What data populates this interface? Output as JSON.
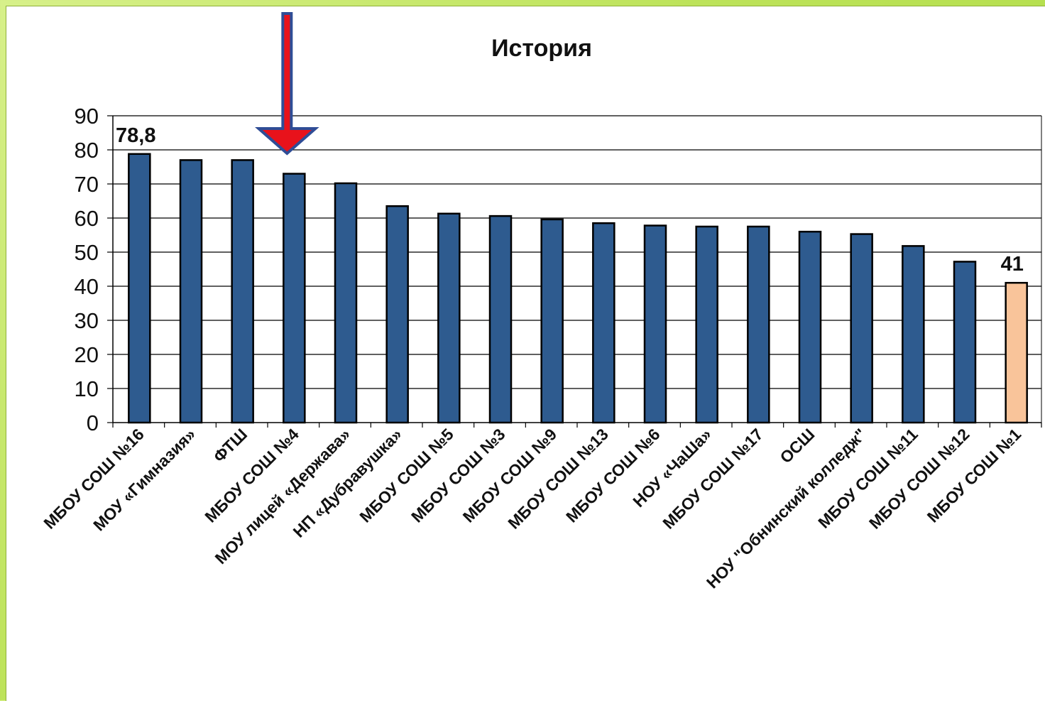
{
  "chart_data": {
    "type": "bar",
    "title": "История",
    "xlabel": "",
    "ylabel": "",
    "ylim": [
      0,
      90
    ],
    "yticks": [
      0,
      10,
      20,
      30,
      40,
      50,
      60,
      70,
      80,
      90
    ],
    "grid": true,
    "categories": [
      "МБОУ СОШ №16",
      "МОУ «Гимназия»",
      "ФТШ",
      "МБОУ СОШ №4",
      "МОУ лицей «Держава»",
      "НП «Дубравушка»",
      "МБОУ СОШ №5",
      "МБОУ СОШ №3",
      "МБОУ СОШ №9",
      "МБОУ СОШ №13",
      "МБОУ СОШ №6",
      "НОУ «ЧаШа»",
      "МБОУ СОШ №17",
      "ОСШ",
      "НОУ \"Обнинский колледж\"",
      "МБОУ СОШ №11",
      "МБОУ СОШ №12",
      "МБОУ СОШ №1"
    ],
    "values": [
      78.8,
      77,
      77,
      73,
      70.2,
      63.5,
      61.3,
      60.6,
      59.6,
      58.5,
      57.8,
      57.5,
      57.5,
      56,
      55.3,
      51.8,
      47.2,
      41
    ],
    "data_labels": [
      {
        "index": 0,
        "text": "78,8"
      },
      {
        "index": 17,
        "text": "41"
      }
    ],
    "colors": {
      "bar": "#2e5b8f",
      "highlight_bar": "#f9c49a",
      "bar_outline": "#000000",
      "grid": "#000000",
      "arrow_fill": "#e8121b",
      "arrow_outline": "#2f4d96"
    },
    "highlight_index": 17,
    "arrow_target_index": 3
  }
}
